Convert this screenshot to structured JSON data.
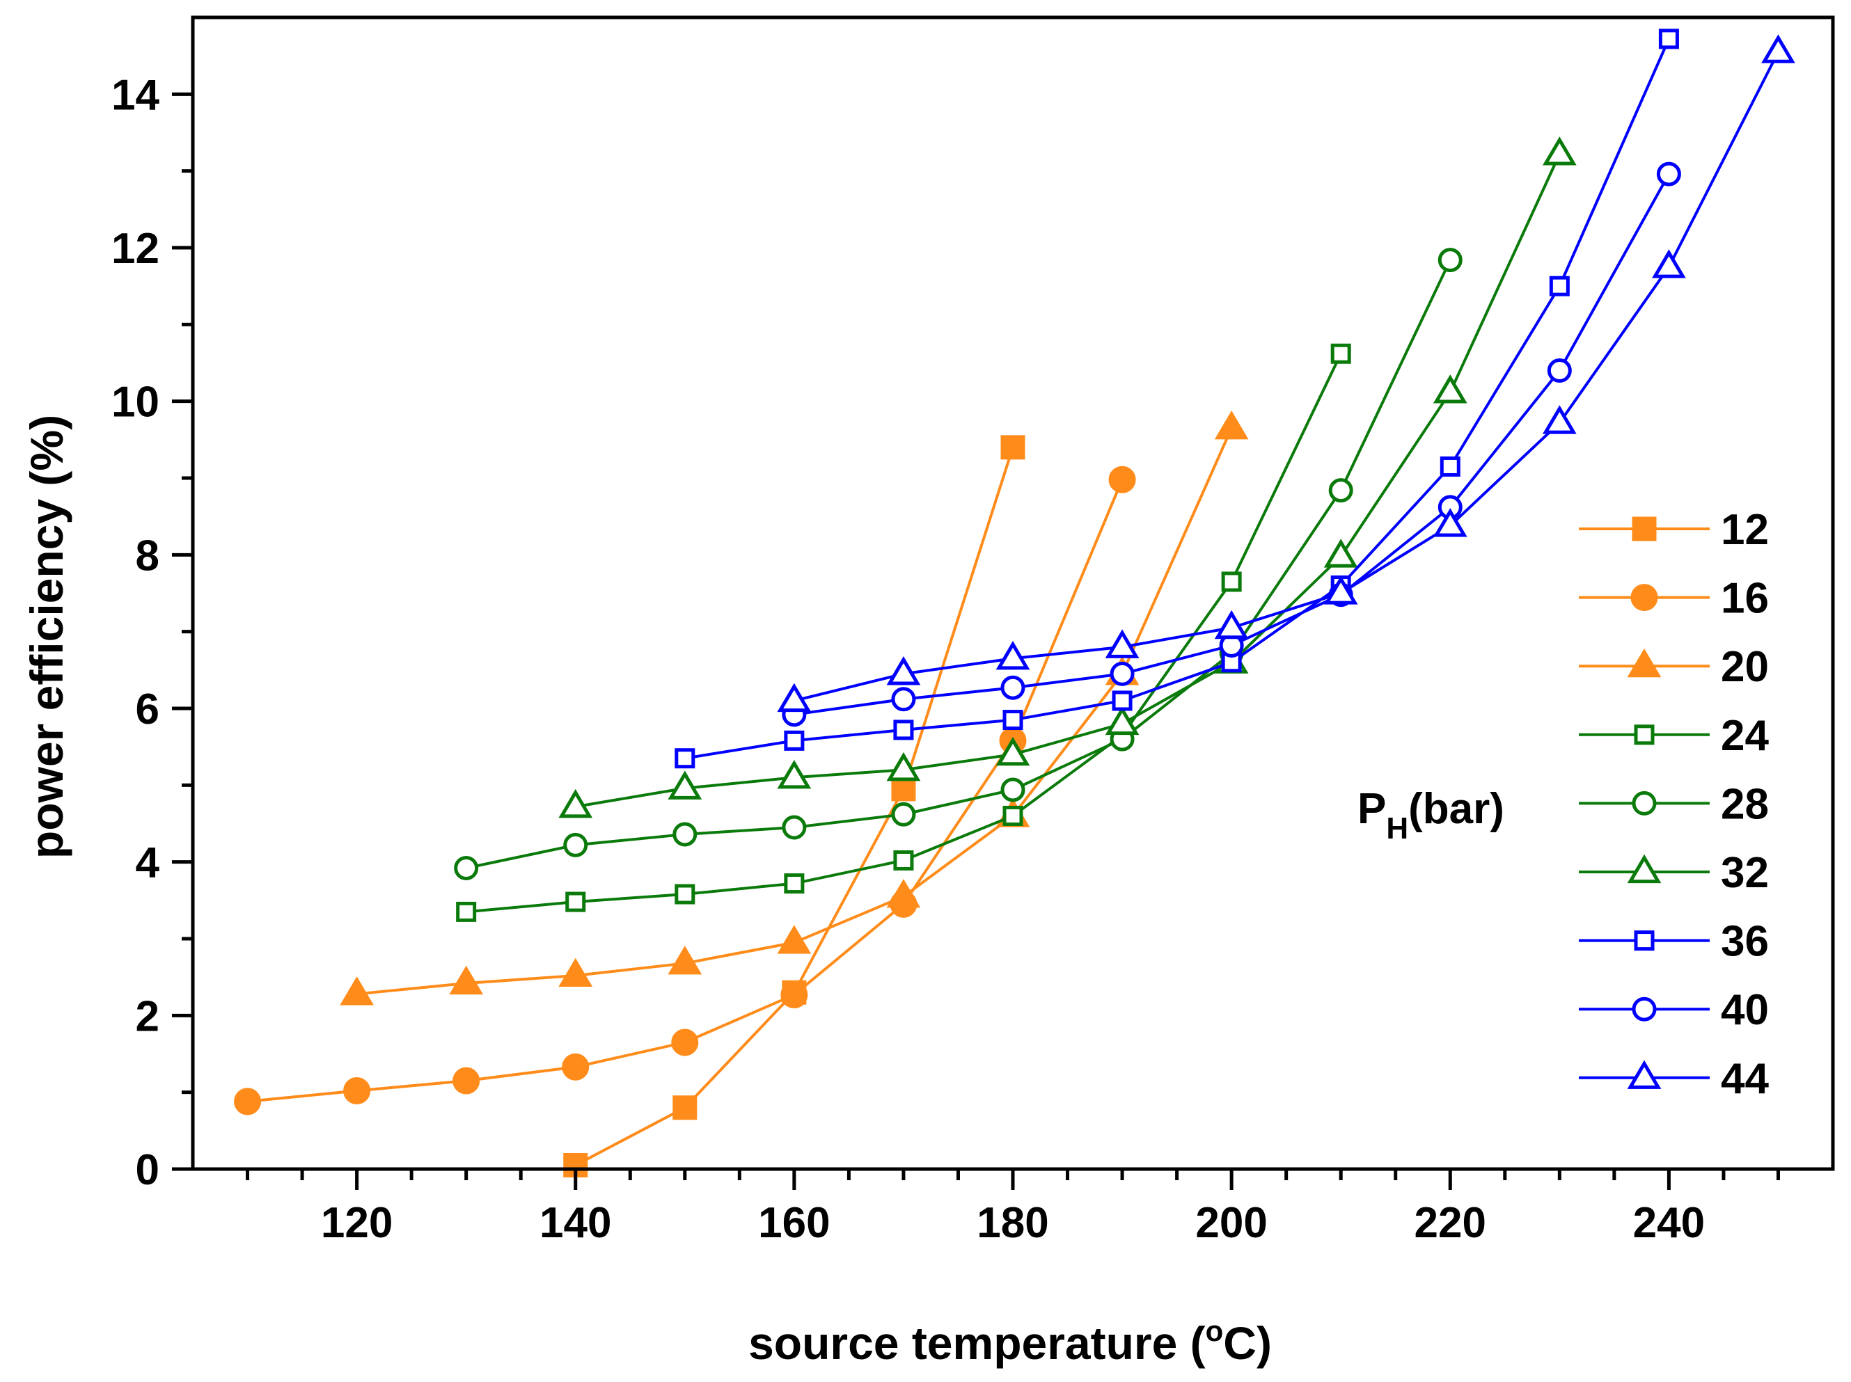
{
  "chart_data": {
    "type": "line",
    "xlabel_prefix": "source temperature (",
    "xlabel_sup": "o",
    "xlabel_suffix": "C)",
    "ylabel": "power efficiency (%)",
    "xlim": [
      105,
      255
    ],
    "ylim": [
      0,
      15
    ],
    "x_ticks": [
      120,
      140,
      160,
      180,
      200,
      220,
      240
    ],
    "y_ticks": [
      0,
      2,
      4,
      6,
      8,
      10,
      12,
      14
    ],
    "x_tick_labels": [
      "120",
      "140",
      "160",
      "180",
      "200",
      "220",
      "240"
    ],
    "y_tick_labels": [
      "0",
      "2",
      "4",
      "6",
      "8",
      "10",
      "12",
      "14"
    ],
    "legend_title_main": "P",
    "legend_title_sub": "H",
    "legend_title_unit": "(bar)",
    "legend_position": "right",
    "series": [
      {
        "name": "12",
        "color": "#ff8c1a",
        "marker": "square",
        "filled": true,
        "x": [
          140,
          150,
          160,
          170,
          180
        ],
        "y": [
          0.05,
          0.8,
          2.3,
          4.95,
          9.4
        ]
      },
      {
        "name": "16",
        "color": "#ff8c1a",
        "marker": "circle",
        "filled": true,
        "x": [
          110,
          120,
          130,
          140,
          150,
          160,
          170,
          180,
          190
        ],
        "y": [
          0.88,
          1.02,
          1.15,
          1.33,
          1.65,
          2.27,
          3.45,
          5.58,
          8.98
        ]
      },
      {
        "name": "20",
        "color": "#ff8c1a",
        "marker": "triangle",
        "filled": true,
        "x": [
          120,
          130,
          140,
          150,
          160,
          170,
          180,
          190,
          200
        ],
        "y": [
          2.28,
          2.42,
          2.52,
          2.68,
          2.95,
          3.55,
          4.6,
          6.45,
          9.65
        ]
      },
      {
        "name": "24",
        "color": "#0a7a0a",
        "marker": "square",
        "filled": false,
        "x": [
          130,
          140,
          150,
          160,
          170,
          180,
          190,
          200,
          210
        ],
        "y": [
          3.35,
          3.48,
          3.58,
          3.72,
          4.02,
          4.6,
          5.65,
          7.65,
          10.62
        ]
      },
      {
        "name": "28",
        "color": "#0a7a0a",
        "marker": "circle",
        "filled": false,
        "x": [
          130,
          140,
          150,
          160,
          170,
          180,
          190,
          200,
          210,
          220
        ],
        "y": [
          3.92,
          4.22,
          4.36,
          4.45,
          4.62,
          4.94,
          5.6,
          6.72,
          8.84,
          11.84
        ]
      },
      {
        "name": "32",
        "color": "#0a7a0a",
        "marker": "triangle",
        "filled": false,
        "x": [
          140,
          150,
          160,
          170,
          180,
          190,
          200,
          210,
          220,
          230
        ],
        "y": [
          4.72,
          4.96,
          5.1,
          5.2,
          5.4,
          5.8,
          6.6,
          7.98,
          10.12,
          13.22
        ]
      },
      {
        "name": "36",
        "color": "#0000ff",
        "marker": "square",
        "filled": false,
        "x": [
          150,
          160,
          170,
          180,
          190,
          200,
          210,
          220,
          230,
          240
        ],
        "y": [
          5.35,
          5.58,
          5.72,
          5.85,
          6.1,
          6.6,
          7.6,
          9.15,
          11.5,
          14.72
        ]
      },
      {
        "name": "40",
        "color": "#0000ff",
        "marker": "circle",
        "filled": false,
        "x": [
          160,
          170,
          180,
          190,
          200,
          210,
          220,
          230,
          240
        ],
        "y": [
          5.92,
          6.12,
          6.27,
          6.45,
          6.82,
          7.48,
          8.62,
          10.4,
          12.96
        ]
      },
      {
        "name": "44",
        "color": "#0000ff",
        "marker": "triangle",
        "filled": false,
        "x": [
          160,
          170,
          180,
          190,
          200,
          210,
          220,
          230,
          240,
          250
        ],
        "y": [
          6.1,
          6.45,
          6.65,
          6.8,
          7.05,
          7.5,
          8.38,
          9.72,
          11.75,
          14.55
        ]
      }
    ]
  }
}
